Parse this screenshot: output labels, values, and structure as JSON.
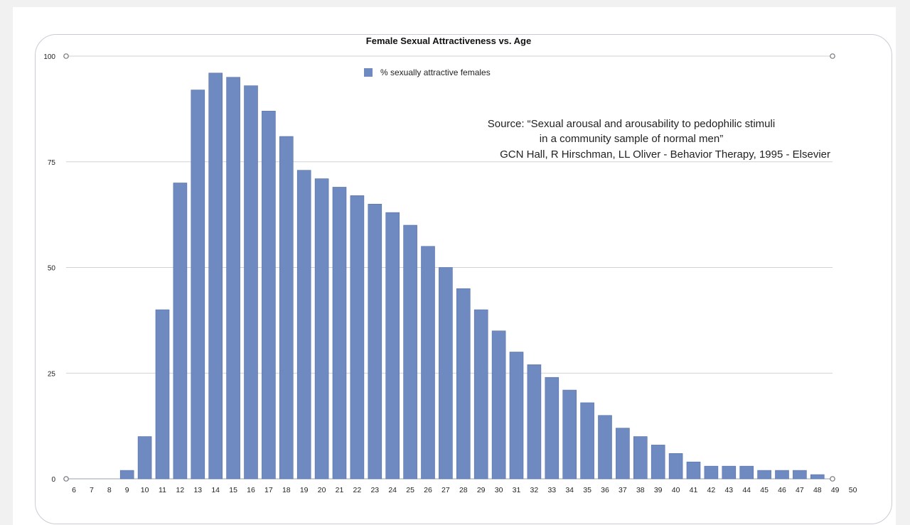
{
  "chart_data": {
    "type": "bar",
    "title": "Female Sexual Attractiveness vs. Age",
    "legend": {
      "label": "% sexually attractive females",
      "position": "top-center"
    },
    "annotation": {
      "lines": [
        "Source: “Sexual arousal and arousability to pedophilic stimuli",
        "in a community sample of normal men”",
        "GCN Hall, R Hirschman, LL Oliver - Behavior Therapy, 1995 - Elsevier"
      ]
    },
    "xlabel": "",
    "ylabel": "",
    "ylim": [
      0,
      100
    ],
    "yticks": [
      0,
      25,
      50,
      75,
      100
    ],
    "grid": true,
    "categories": [
      "6",
      "7",
      "8",
      "9",
      "10",
      "11",
      "12",
      "13",
      "14",
      "15",
      "16",
      "17",
      "18",
      "19",
      "20",
      "21",
      "22",
      "23",
      "24",
      "25",
      "26",
      "27",
      "28",
      "29",
      "30",
      "31",
      "32",
      "33",
      "34",
      "35",
      "36",
      "37",
      "38",
      "39",
      "40",
      "41",
      "42",
      "43",
      "44",
      "45",
      "46",
      "47",
      "48",
      "49",
      "50"
    ],
    "series": [
      {
        "name": "% sexually attractive females",
        "color": "#6f8ac0",
        "values": [
          0,
          0,
          0,
          2,
          10,
          40,
          70,
          92,
          96,
          95,
          93,
          87,
          81,
          73,
          71,
          69,
          67,
          65,
          63,
          60,
          55,
          50,
          45,
          40,
          35,
          30,
          27,
          24,
          21,
          18,
          15,
          12,
          10,
          8,
          6,
          4,
          3,
          3,
          3,
          2,
          2,
          2,
          1,
          0,
          0
        ]
      }
    ]
  }
}
